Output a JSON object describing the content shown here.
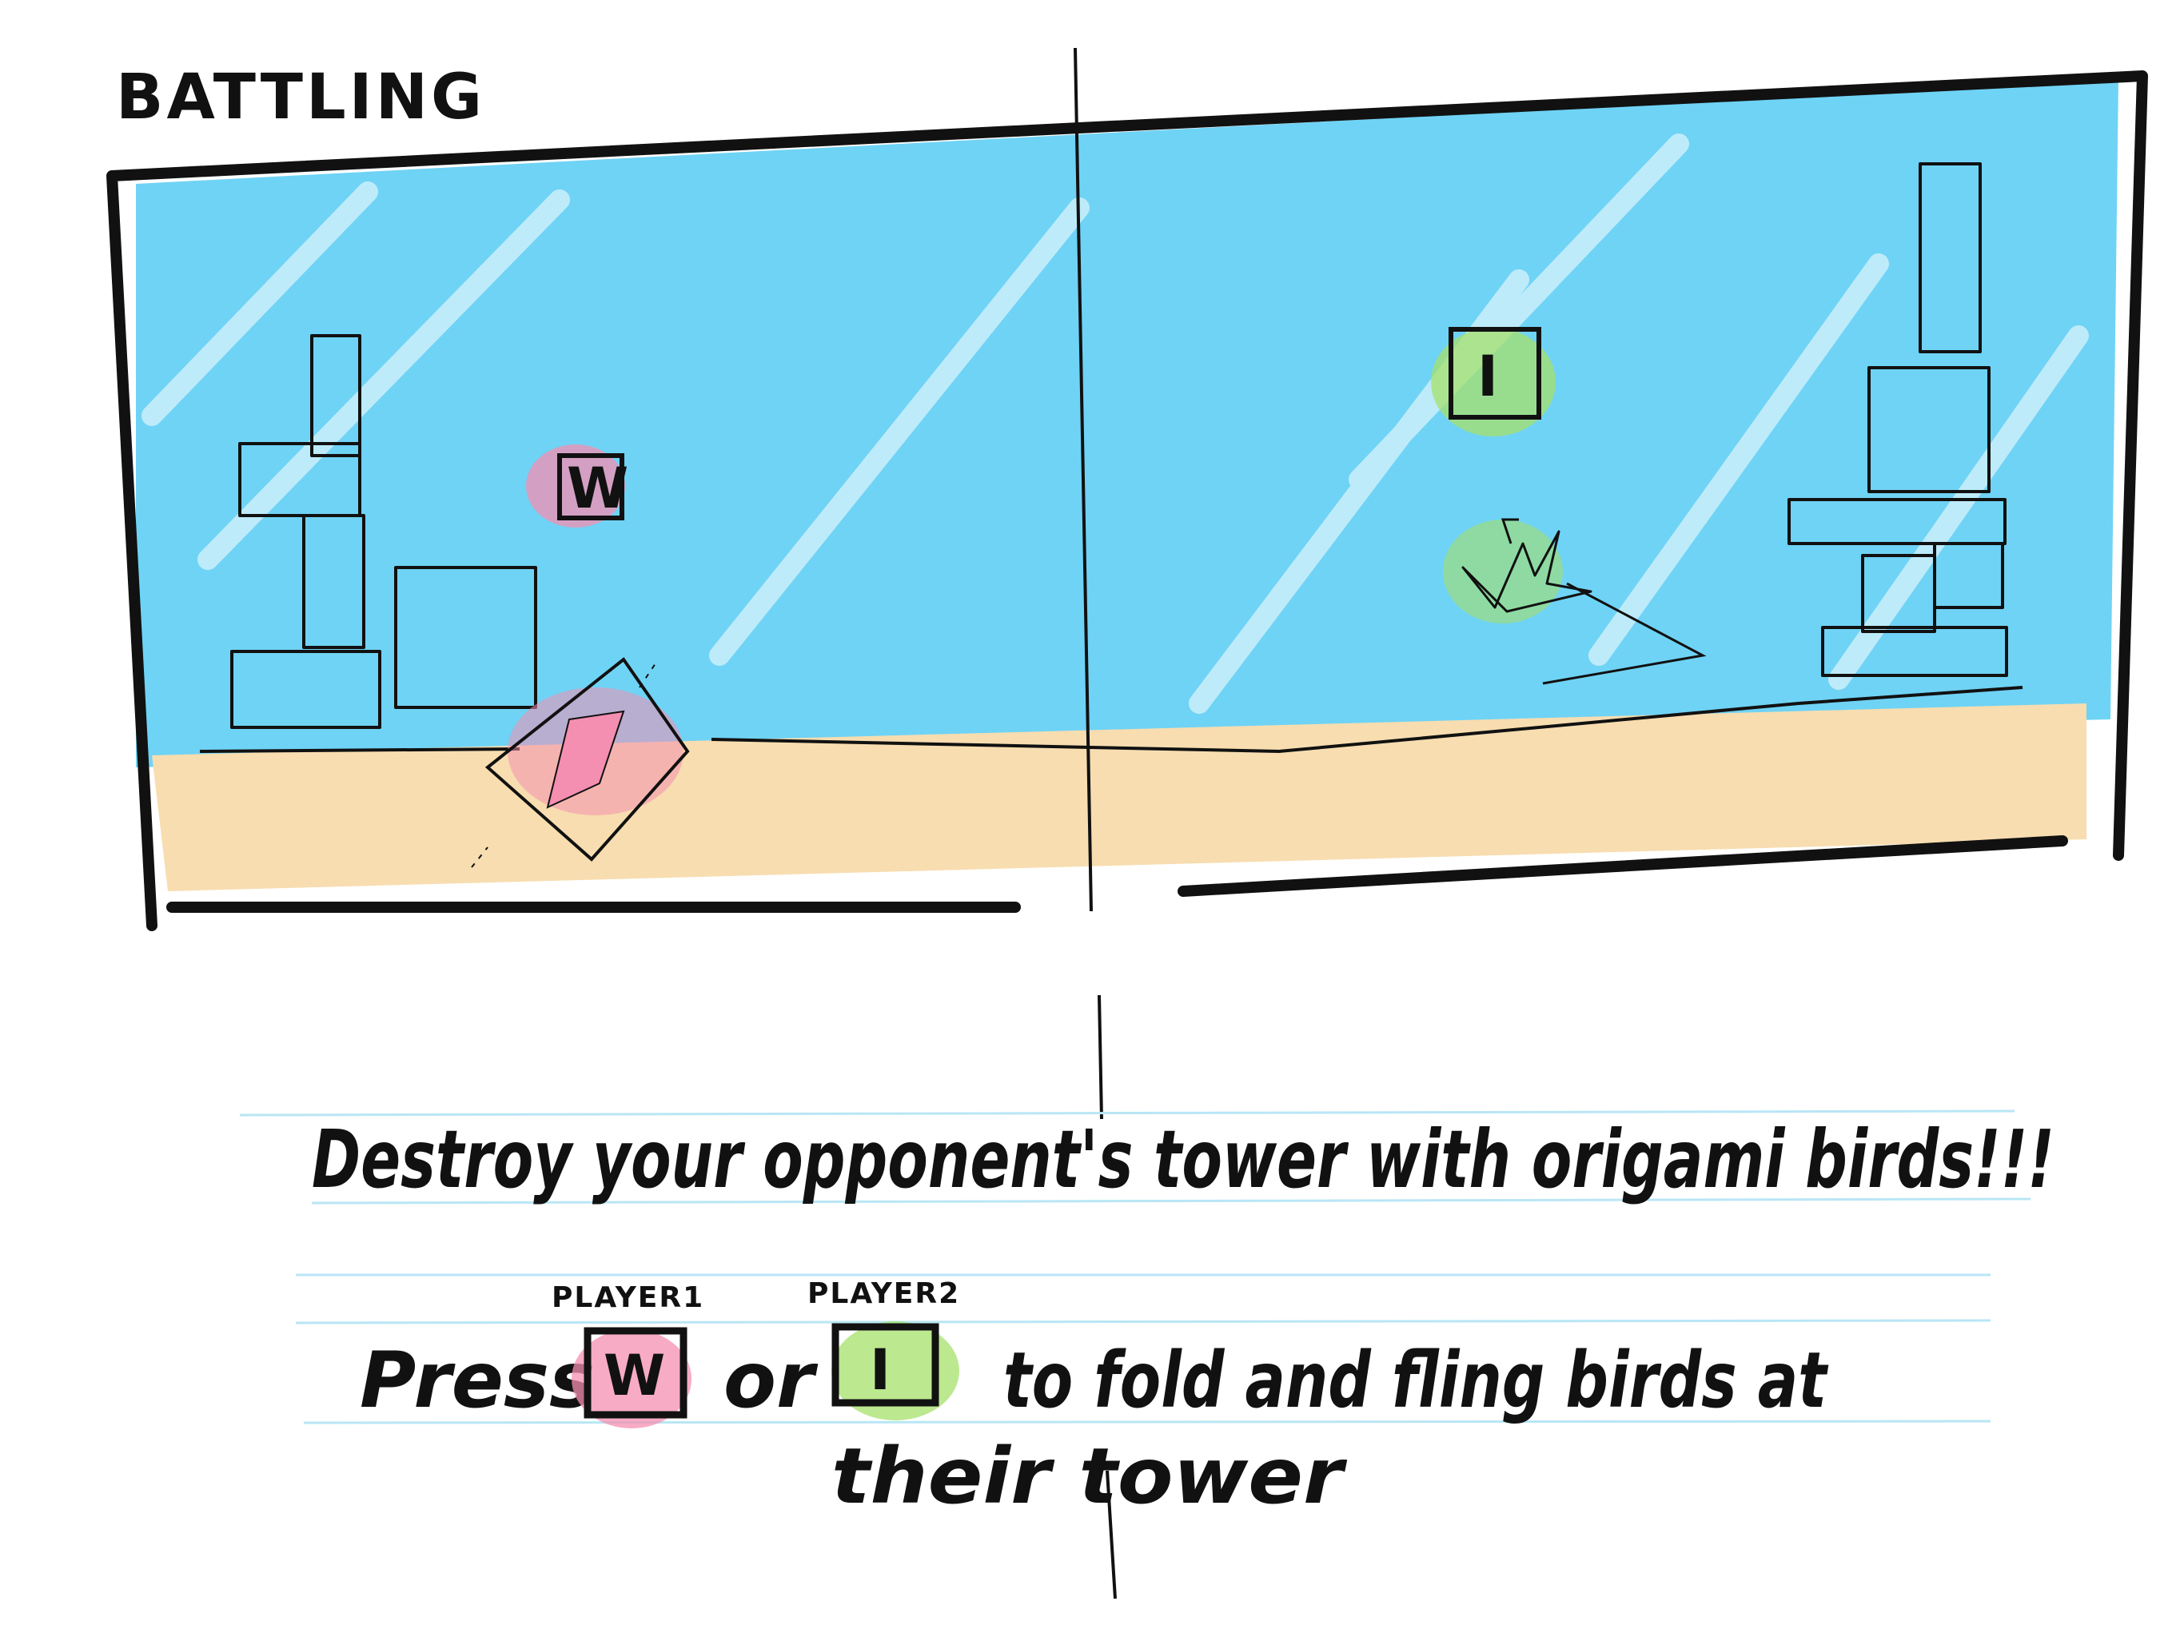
{
  "scene": {
    "title": "BATTLING"
  },
  "game_keys": {
    "left_key": {
      "letter": "W",
      "color": "#f48fb1"
    },
    "right_key": {
      "letter": "I",
      "color": "#a5e06b"
    }
  },
  "instructions": {
    "headline": "Destroy your opponent's tower with origami birds!!!",
    "press_word": "Press",
    "player1_label": "PLAYER1",
    "player1_key": "W",
    "or_word": "or",
    "player2_label": "PLAYER2",
    "player2_key": "I",
    "line2_tail": "to fold and fling birds at",
    "line3": "their tower"
  },
  "colors": {
    "sky": "#6fd3f5",
    "ground": "#f7ddb0",
    "ink": "#111111",
    "notebook_line": "#b9e6f5"
  }
}
